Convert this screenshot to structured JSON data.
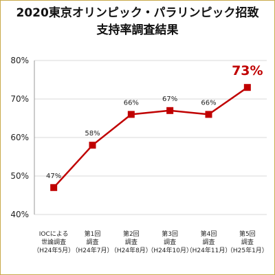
{
  "title_line1": "2020東京オリンピック・パラリンピック招致",
  "title_line2": "支持率調査結果",
  "colors": {
    "line": "#c00000",
    "grid": "#d9d9d9",
    "axis": "#999999",
    "frame": "#c9a94a"
  },
  "chart_data": {
    "type": "line",
    "title": "2020東京オリンピック・パラリンピック招致 支持率調査結果",
    "xlabel": "",
    "ylabel": "",
    "ylim": [
      40,
      80
    ],
    "yticks": [
      40,
      50,
      60,
      70,
      80
    ],
    "ytick_labels": [
      "40%",
      "50%",
      "60%",
      "70%",
      "80%"
    ],
    "grid": true,
    "categories": [
      [
        "IOCによる",
        "世論調査",
        "（H24年5月）"
      ],
      [
        "第1回",
        "調査",
        "（H24年7月）"
      ],
      [
        "第2回",
        "調査",
        "（H24年8月）"
      ],
      [
        "第3回",
        "調査",
        "（H24年10月）"
      ],
      [
        "第4回",
        "調査",
        "（H24年11月）"
      ],
      [
        "第5回",
        "調査",
        "（H25年1月）"
      ]
    ],
    "values": [
      47,
      58,
      66,
      67,
      66,
      73
    ],
    "value_labels": [
      "47%",
      "58%",
      "66%",
      "67%",
      "66%",
      "73%"
    ],
    "highlight_index": 5
  }
}
